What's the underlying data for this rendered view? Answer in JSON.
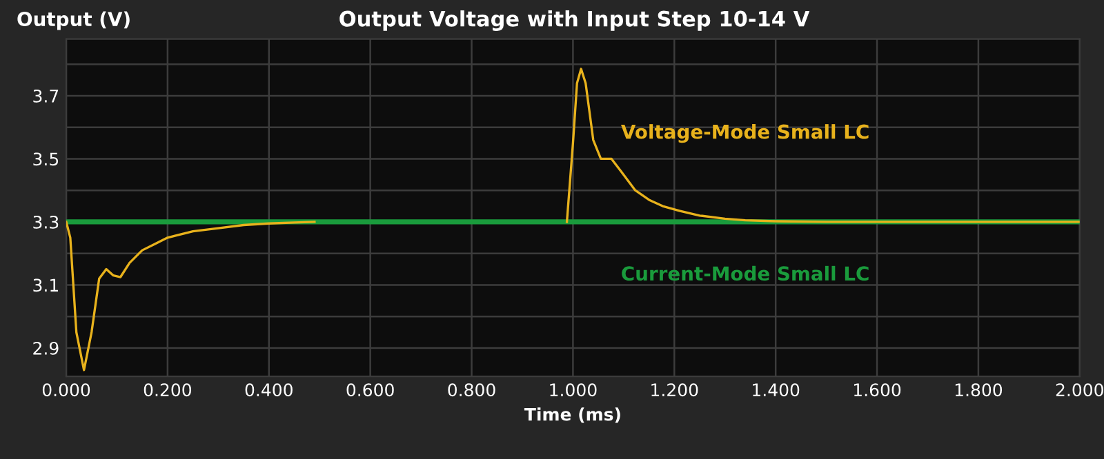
{
  "chart_data": {
    "type": "line",
    "title": "Output Voltage with Input Step 10-14 V",
    "xlabel": "Time (ms)",
    "ylabel": "Output (V)",
    "xlim": [
      0,
      2.0
    ],
    "xticks": [
      {
        "value": 0,
        "label": "0.000"
      },
      {
        "value": 0.2,
        "label": "0.200"
      },
      {
        "value": 0.4,
        "label": "0.400"
      },
      {
        "value": 0.6,
        "label": "0.600"
      },
      {
        "value": 0.8,
        "label": "0.800"
      },
      {
        "value": 1.0,
        "label": "1.000"
      },
      {
        "value": 1.2,
        "label": "1.200"
      },
      {
        "value": 1.4,
        "label": "1.400"
      },
      {
        "value": 1.6,
        "label": "1.600"
      },
      {
        "value": 1.8,
        "label": "1.800"
      },
      {
        "value": 2.0,
        "label": "2.000"
      }
    ],
    "ylim": [
      2.81,
      3.88
    ],
    "yticks": [
      2.9,
      {
        "value": 3.0,
        "label": null
      },
      3.1,
      {
        "value": 3.2,
        "label": null
      },
      3.3,
      {
        "value": 3.4,
        "label": null
      },
      3.5,
      {
        "value": 3.6,
        "label": null
      },
      3.7,
      {
        "value": 3.8,
        "label": null
      }
    ],
    "grid": true,
    "legend": false,
    "marker": "none",
    "line_style": "solid",
    "series": [
      {
        "name": "Voltage-Mode Small LC",
        "color": "#e8b21c",
        "x": [
          0,
          0.008,
          0.02,
          0.035,
          0.05,
          0.065,
          0.079,
          0.093,
          0.107,
          0.125,
          0.15,
          0.175,
          0.2,
          0.25,
          0.3,
          0.35,
          0.4,
          0.45,
          0.49,
          0.75,
          0.988,
          1.0,
          1.008,
          1.016,
          1.025,
          1.04,
          1.055,
          1.076,
          1.095,
          1.123,
          1.15,
          1.177,
          1.21,
          1.25,
          1.3,
          1.34,
          1.4,
          1.5,
          1.7,
          2.0
        ],
        "values": [
          3.3,
          3.25,
          2.95,
          2.83,
          2.95,
          3.12,
          3.15,
          3.13,
          3.125,
          3.17,
          3.21,
          3.23,
          3.25,
          3.27,
          3.28,
          3.29,
          3.295,
          3.298,
          3.3,
          null,
          3.3,
          3.55,
          3.74,
          3.785,
          3.74,
          3.56,
          3.5,
          3.5,
          3.46,
          3.4,
          3.37,
          3.35,
          3.335,
          3.32,
          3.31,
          3.305,
          3.302,
          3.3,
          3.3,
          3.3
        ]
      },
      {
        "name": "Current-Mode Small LC",
        "color": "#1a9b3c",
        "x": [
          0,
          2.0
        ],
        "values": [
          3.3,
          3.3
        ]
      }
    ]
  }
}
